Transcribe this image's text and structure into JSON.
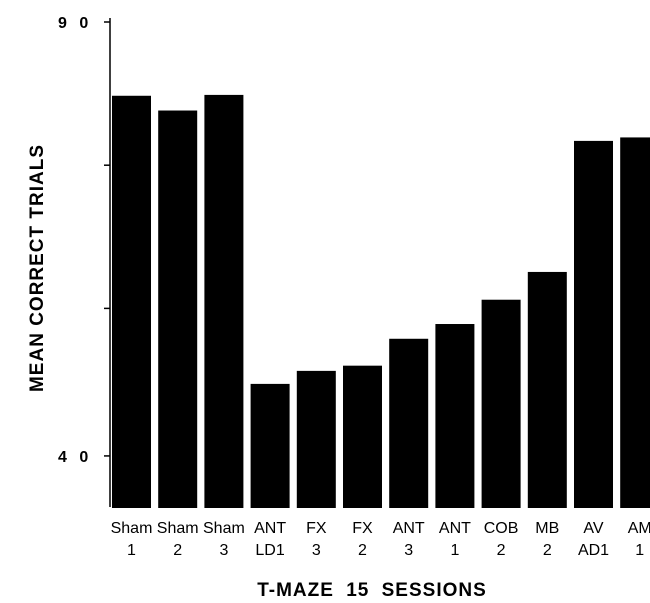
{
  "chart_data": {
    "type": "bar",
    "categories": [
      [
        "Sham",
        "1"
      ],
      [
        "Sham",
        "2"
      ],
      [
        "Sham",
        "3"
      ],
      [
        "ANT",
        "LD1"
      ],
      [
        "FX",
        "3"
      ],
      [
        "FX",
        "2"
      ],
      [
        "ANT",
        "3"
      ],
      [
        "ANT",
        "1"
      ],
      [
        "COB",
        "2"
      ],
      [
        "MB",
        "2"
      ],
      [
        "AV",
        "AD1"
      ],
      [
        "AM",
        "1"
      ]
    ],
    "values": [
      81.5,
      79.8,
      81.6,
      48.3,
      49.8,
      50.4,
      53.5,
      55.2,
      58.0,
      61.2,
      76.3,
      76.7
    ],
    "xlabel": "T-MAZE 15 SESSIONS",
    "ylabel": "MEAN CORRECT TRIALS",
    "ylim": [
      34,
      90
    ],
    "yticks": [
      90,
      73.5,
      57,
      40
    ],
    "ytick_labels": [
      "9 0",
      "",
      "",
      "4 0"
    ],
    "grid": false,
    "colors": {
      "bar": "#000000",
      "axis": "#000000"
    }
  }
}
